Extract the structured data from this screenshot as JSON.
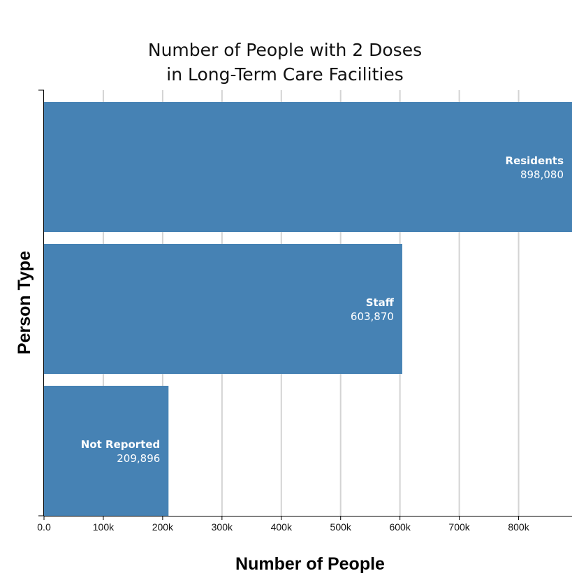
{
  "chart_data": {
    "type": "bar",
    "orientation": "horizontal",
    "title": [
      "Number of People with 2 Doses",
      "in Long-Term Care Facilities"
    ],
    "xlabel": "Number of People",
    "ylabel": "Person Type",
    "xlim": [
      0,
      890000
    ],
    "ticks": [
      0,
      100000,
      200000,
      300000,
      400000,
      500000,
      600000,
      700000,
      800000
    ],
    "tick_labels": [
      "0.0",
      "100k",
      "200k",
      "300k",
      "400k",
      "500k",
      "600k",
      "700k",
      "800k"
    ],
    "categories": [
      "Residents",
      "Staff",
      "Not Reported"
    ],
    "values": [
      898080,
      603870,
      209896
    ],
    "value_labels": [
      "898,080",
      "603,870",
      "209,896"
    ],
    "grid": true,
    "bar_color": "#4682b4",
    "grid_color": "#d3d3d3"
  }
}
